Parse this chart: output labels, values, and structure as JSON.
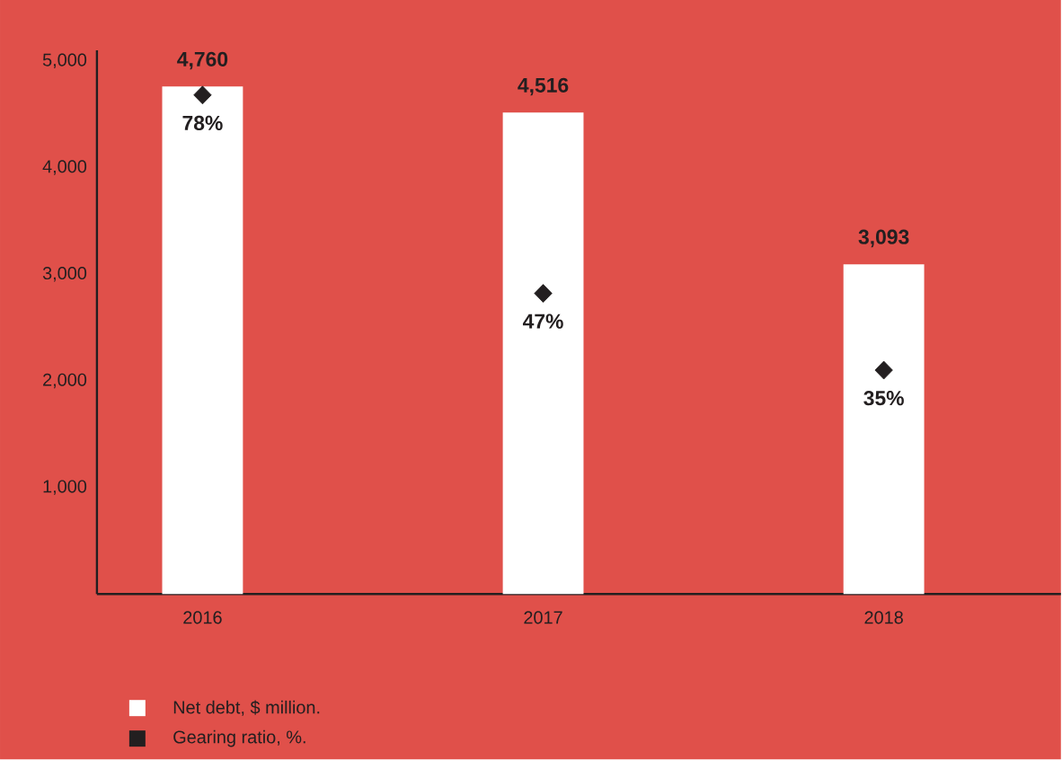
{
  "chart_data": {
    "type": "bar",
    "categories": [
      "2016",
      "2017",
      "2018"
    ],
    "series": [
      {
        "name": "Net debt, $ million.",
        "color": "#ffffff",
        "values": [
          4760,
          4516,
          3093
        ],
        "value_labels": [
          "4,760",
          "4,516",
          "3,093"
        ]
      },
      {
        "name": "Gearing ratio, %.",
        "type": "scatter",
        "marker": "diamond",
        "axis": "y2",
        "color": "#231f20",
        "values": [
          78,
          47,
          35
        ],
        "value_labels": [
          "78%",
          "47%",
          "35%"
        ]
      }
    ],
    "ylim": [
      0,
      5100
    ],
    "yticks": [
      {
        "value": 1000,
        "label": "1,000"
      },
      {
        "value": 2000,
        "label": "2,000"
      },
      {
        "value": 3000,
        "label": "3,000"
      },
      {
        "value": 4000,
        "label": "4,000"
      },
      {
        "value": 5000,
        "label": "5,000"
      }
    ],
    "y2lim": [
      0,
      85
    ],
    "grid": false,
    "legend": "bottom left"
  }
}
